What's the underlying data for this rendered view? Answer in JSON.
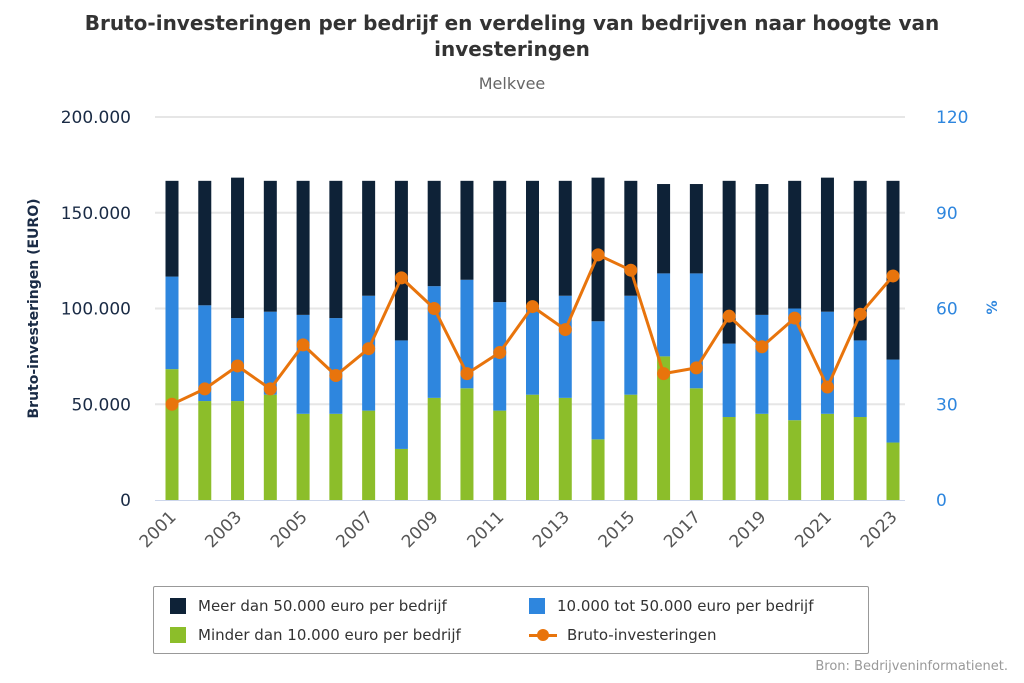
{
  "chart_data": {
    "type": "bar",
    "title": "Bruto-investeringen per bedrijf en verdeling van bedrijven naar hoogte van investeringen",
    "subtitle": "Melkvee",
    "ylabel": "Bruto-investeringen (EURO)",
    "y2label": "%",
    "ylim": [
      0,
      200000
    ],
    "y2lim": [
      0,
      120
    ],
    "yticks": [
      "0",
      "50.000",
      "100.000",
      "150.000",
      "200.000"
    ],
    "y2ticks": [
      "0",
      "30",
      "60",
      "90",
      "120"
    ],
    "categories": [
      "2001",
      "2002",
      "2003",
      "2004",
      "2005",
      "2006",
      "2007",
      "2008",
      "2009",
      "2010",
      "2011",
      "2012",
      "2013",
      "2014",
      "2015",
      "2016",
      "2017",
      "2018",
      "2019",
      "2020",
      "2021",
      "2022",
      "2023"
    ],
    "stacked_series": [
      {
        "name": "Minder dan 10.000 euro per bedrijf",
        "color": "#8cbe2a",
        "axis": "right",
        "values": [
          41,
          31,
          31,
          33,
          27,
          27,
          28,
          16,
          32,
          35,
          28,
          33,
          32,
          19,
          33,
          45,
          35,
          26,
          27,
          25,
          27,
          26,
          18
        ]
      },
      {
        "name": "10.000 tot 50.000 euro per bedrijf",
        "color": "#2e86de",
        "axis": "right",
        "values": [
          29,
          30,
          26,
          26,
          31,
          30,
          36,
          34,
          35,
          34,
          34,
          27,
          32,
          37,
          31,
          26,
          36,
          23,
          31,
          35,
          32,
          24,
          26
        ]
      },
      {
        "name": "Meer dan 50.000 euro per bedrijf",
        "color": "#0e2237",
        "axis": "right",
        "values": [
          30,
          39,
          44,
          41,
          42,
          43,
          36,
          50,
          33,
          31,
          38,
          40,
          36,
          45,
          36,
          28,
          28,
          51,
          41,
          40,
          42,
          50,
          56
        ]
      }
    ],
    "line_series": {
      "name": "Bruto-investeringen",
      "color": "#e8740c",
      "axis": "left",
      "values": [
        50000,
        58000,
        70000,
        58000,
        81000,
        65000,
        79000,
        116000,
        100000,
        66000,
        77000,
        101000,
        89000,
        128000,
        120000,
        66000,
        69000,
        96000,
        80000,
        95000,
        59000,
        97000,
        117000
      ]
    },
    "legend": "bottom",
    "grid": true
  },
  "legend_items": [
    {
      "label": "Meer dan 50.000 euro per bedrijf",
      "color": "#0e2237"
    },
    {
      "label": "10.000 tot 50.000 euro per bedrijf",
      "color": "#2e86de"
    },
    {
      "label": "Minder dan 10.000 euro per bedrijf",
      "color": "#8cbe2a"
    },
    {
      "label": "Bruto-investeringen",
      "color": "#e8740c"
    }
  ],
  "source": "Bron: Bedrijveninformatienet.",
  "colors": {
    "left_axis_text": "#1a2b45",
    "right_axis_text": "#2e86de",
    "grid": "#e6e6e6"
  }
}
